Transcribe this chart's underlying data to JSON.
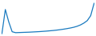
{
  "values": [
    100,
    4000,
    2000,
    400,
    250,
    270,
    290,
    310,
    330,
    360,
    390,
    420,
    460,
    500,
    550,
    600,
    660,
    730,
    810,
    900,
    1000,
    1120,
    1280,
    1500,
    1800,
    2200,
    3000,
    5000
  ],
  "line_color": "#1a7abf",
  "background_color": "#ffffff",
  "linewidth": 0.9
}
